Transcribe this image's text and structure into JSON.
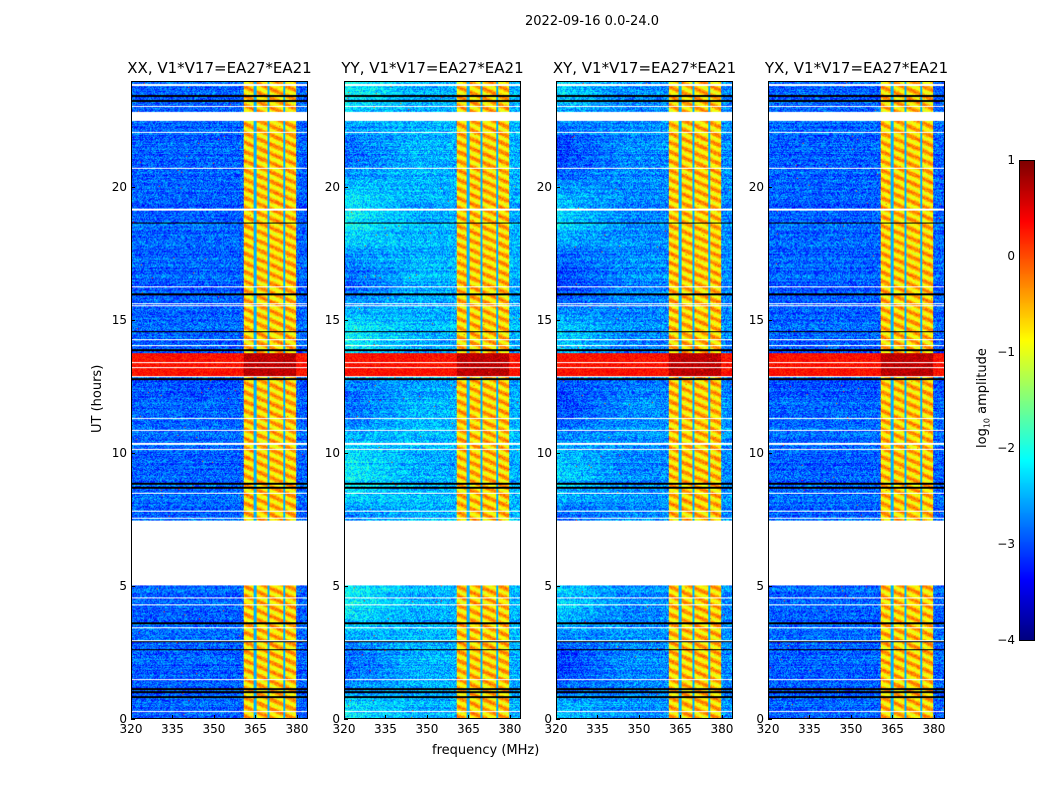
{
  "chart_data": {
    "type": "heatmap",
    "suptitle": "2022-09-16 0.0-24.0",
    "xlabel": "frequency (MHz)",
    "ylabel": "UT (hours)",
    "xlim": [
      320,
      384
    ],
    "ylim": [
      0,
      24
    ],
    "xticks": [
      "320",
      "335",
      "350",
      "365",
      "380"
    ],
    "xtick_values": [
      320,
      335,
      350,
      365,
      380
    ],
    "yticks": [
      "0",
      "5",
      "10",
      "15",
      "20"
    ],
    "ytick_values": [
      0,
      5,
      10,
      15,
      20
    ],
    "panels": [
      {
        "title": "XX, V1*V17=EA27*EA21",
        "background": -2.9
      },
      {
        "title": "YY, V1*V17=EA27*EA21",
        "background": -2.5
      },
      {
        "title": "XY, V1*V17=EA27*EA21",
        "background": -2.7
      },
      {
        "title": "YX, V1*V17=EA27*EA21",
        "background": -2.9
      }
    ],
    "features": {
      "masked_hours": [
        [
          5.03,
          7.45
        ],
        [
          22.55,
          22.9
        ]
      ],
      "flagged_hours": [
        0.8,
        1.0,
        1.1,
        2.6,
        2.9,
        3.6,
        8.7,
        8.85,
        12.8,
        13.9,
        14.6,
        16.0,
        18.7,
        23.3,
        23.5
      ],
      "rfi_band_mhz": [
        360.5,
        380
      ],
      "rfi_level": -0.6,
      "strong_event_hours": [
        12.9,
        13.8
      ],
      "strong_event_level": 0.3
    },
    "colorbar": {
      "label": "log10 amplitude",
      "range": [
        -4,
        1
      ],
      "ticks": [
        "1",
        "0",
        "−1",
        "−2",
        "−3",
        "−4"
      ],
      "tick_values": [
        1,
        0,
        -1,
        -2,
        -3,
        -4
      ],
      "colormap": "jet"
    }
  }
}
